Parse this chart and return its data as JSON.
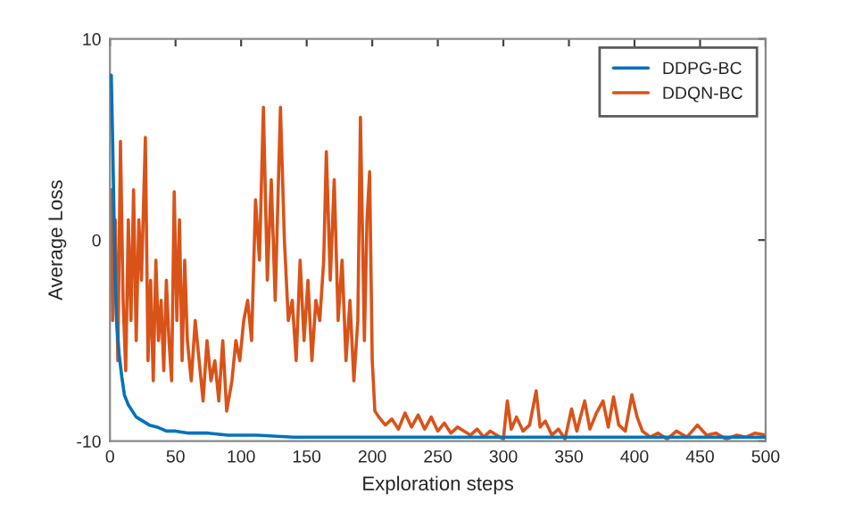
{
  "chart_data": {
    "type": "line",
    "xlabel": "Exploration steps",
    "ylabel": "Average Loss",
    "xlim": [
      0,
      500
    ],
    "ylim": [
      -10,
      10
    ],
    "xticks": [
      0,
      50,
      100,
      150,
      200,
      250,
      300,
      350,
      400,
      450,
      500
    ],
    "yticks": [
      -10,
      0,
      10
    ],
    "grid": false,
    "legend": "top right",
    "line_style": "solid",
    "marker": "none",
    "series": [
      {
        "name": "DDPG-BC",
        "color": "#0072bd",
        "x": [
          1,
          2,
          3,
          4,
          5,
          7,
          9,
          11,
          14,
          17,
          20,
          25,
          30,
          36,
          43,
          50,
          60,
          75,
          90,
          112,
          140,
          170,
          200,
          250,
          300,
          350,
          400,
          450,
          500
        ],
        "values": [
          8.2,
          5.0,
          1.5,
          -2.0,
          -4.0,
          -5.7,
          -6.8,
          -7.7,
          -8.2,
          -8.5,
          -8.8,
          -9.0,
          -9.2,
          -9.3,
          -9.5,
          -9.5,
          -9.6,
          -9.6,
          -9.7,
          -9.7,
          -9.8,
          -9.8,
          -9.8,
          -9.8,
          -9.8,
          -9.8,
          -9.8,
          -9.8,
          -9.8
        ]
      },
      {
        "name": "DDQN-BC",
        "color": "#d95319",
        "x": [
          1,
          2,
          4,
          6,
          8,
          10,
          12,
          14,
          16,
          18,
          20,
          22,
          24,
          27,
          29,
          31,
          33,
          35,
          37,
          39,
          41,
          43,
          45,
          47,
          49,
          51,
          53,
          55,
          57,
          59,
          62,
          65,
          68,
          71,
          74,
          77,
          80,
          83,
          86,
          89,
          93,
          96,
          99,
          102,
          105,
          108,
          111,
          114,
          117,
          120,
          123,
          126,
          130,
          133,
          136,
          139,
          142,
          145,
          148,
          151,
          154,
          157,
          160,
          163,
          165,
          168,
          171,
          174,
          177,
          180,
          183,
          186,
          189,
          191,
          194,
          196,
          198,
          200,
          202,
          205,
          210,
          215,
          220,
          225,
          230,
          235,
          240,
          245,
          250,
          255,
          260,
          265,
          270,
          275,
          280,
          285,
          290,
          295,
          300,
          303,
          306,
          310,
          315,
          320,
          325,
          328,
          332,
          337,
          342,
          347,
          352,
          356,
          362,
          366,
          371,
          376,
          380,
          384,
          388,
          393,
          398,
          402,
          406,
          412,
          418,
          425,
          432,
          440,
          448,
          455,
          462,
          470,
          478,
          485,
          492,
          500
        ],
        "values": [
          2.5,
          -4,
          1,
          -6,
          4.9,
          -3,
          -6.5,
          1,
          -4,
          2.5,
          -5,
          1,
          -2,
          5.1,
          -6,
          -2,
          -7,
          -1,
          -5,
          -3,
          -6.5,
          -2,
          -5,
          -7,
          2.4,
          -4,
          1,
          -6,
          -1,
          -5,
          -7,
          -4,
          -6,
          -8,
          -5,
          -7,
          -6,
          -8,
          -5,
          -8.5,
          -7,
          -5,
          -6,
          -4,
          -3,
          -5,
          2,
          -1,
          6.6,
          -2,
          3,
          -3,
          6.6,
          0,
          -4,
          -3,
          -6,
          -1,
          -5,
          -2,
          -6,
          -3,
          -4,
          -1,
          4.4,
          -2,
          3,
          -4,
          -1,
          -6,
          -3,
          -7,
          -4,
          6.1,
          -5,
          1,
          3.4,
          -6,
          -8.5,
          -8.8,
          -9.2,
          -8.9,
          -9.4,
          -8.6,
          -9.3,
          -8.7,
          -9.4,
          -8.8,
          -9.5,
          -9.1,
          -9.6,
          -9.3,
          -9.5,
          -9.7,
          -9.4,
          -9.8,
          -9.5,
          -9.7,
          -9.9,
          -8.0,
          -9.4,
          -8.8,
          -9.5,
          -9.2,
          -7.5,
          -9.3,
          -9.0,
          -9.7,
          -9.4,
          -9.9,
          -8.4,
          -9.5,
          -8.0,
          -9.4,
          -8.6,
          -8.0,
          -9.3,
          -7.8,
          -9.2,
          -9.5,
          -7.7,
          -8.8,
          -9.5,
          -9.8,
          -9.6,
          -9.9,
          -9.5,
          -9.8,
          -9.2,
          -9.7,
          -9.6,
          -9.9,
          -9.7,
          -9.8,
          -9.6,
          -9.7
        ]
      }
    ]
  }
}
